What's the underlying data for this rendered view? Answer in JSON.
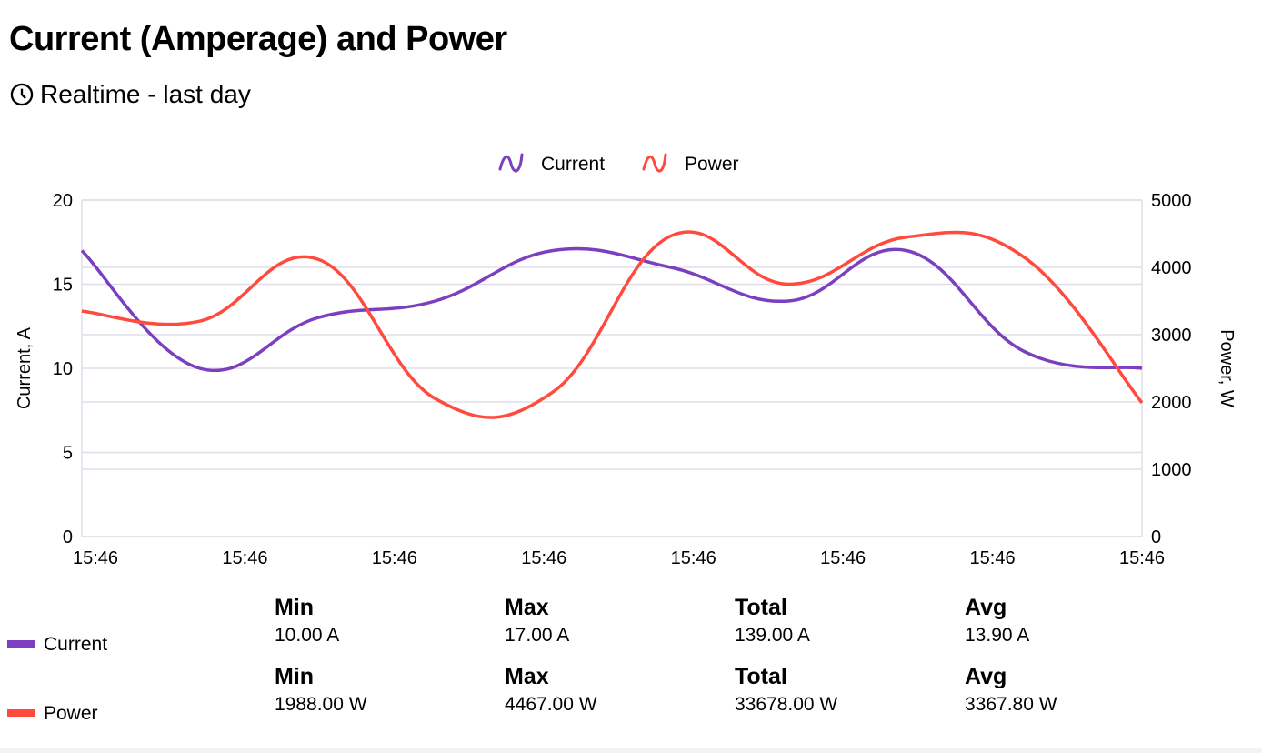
{
  "header": {
    "title": "Current (Amperage) and Power",
    "subtitle": "Realtime - last day",
    "subtitle_icon": "clock-icon"
  },
  "chart_data": {
    "type": "line",
    "x": [
      "15:46",
      "15:46",
      "15:46",
      "15:46",
      "15:46",
      "15:46",
      "15:46",
      "15:46",
      "15:46",
      "15:46"
    ],
    "x_tick_labels": [
      "15:46",
      "15:46",
      "15:46",
      "15:46",
      "15:46",
      "15:46",
      "15:46",
      "15:46"
    ],
    "series": [
      {
        "name": "Current",
        "axis": "left",
        "color": "#7B3FC0",
        "values": [
          17,
          10,
          13,
          14,
          17,
          16,
          14,
          17,
          11,
          10
        ]
      },
      {
        "name": "Power",
        "axis": "right",
        "color": "#FF4A3D",
        "values": [
          3350,
          3200,
          4123,
          2050,
          2150,
          4467,
          3750,
          4450,
          4150,
          1988
        ]
      }
    ],
    "y_left": {
      "label": "Current, A",
      "min": 0,
      "max": 20,
      "ticks": [
        "0",
        "5",
        "10",
        "15",
        "20"
      ]
    },
    "y_right": {
      "label": "Power, W",
      "min": 0,
      "max": 5000,
      "ticks": [
        "0",
        "1000",
        "2000",
        "3000",
        "4000",
        "5000"
      ]
    },
    "grid": true,
    "smooth": true,
    "legend": "top-center"
  },
  "stats": [
    {
      "name": "Current",
      "color": "#7B3FC0",
      "min_label": "Min",
      "min": "10.00 A",
      "max_label": "Max",
      "max": "17.00 A",
      "total_label": "Total",
      "total": "139.00 A",
      "avg_label": "Avg",
      "avg": "13.90 A"
    },
    {
      "name": "Power",
      "color": "#FF4A3D",
      "min_label": "Min",
      "min": "1988.00 W",
      "max_label": "Max",
      "max": "4467.00 W",
      "total_label": "Total",
      "total": "33678.00 W",
      "avg_label": "Avg",
      "avg": "3367.80 W"
    }
  ]
}
